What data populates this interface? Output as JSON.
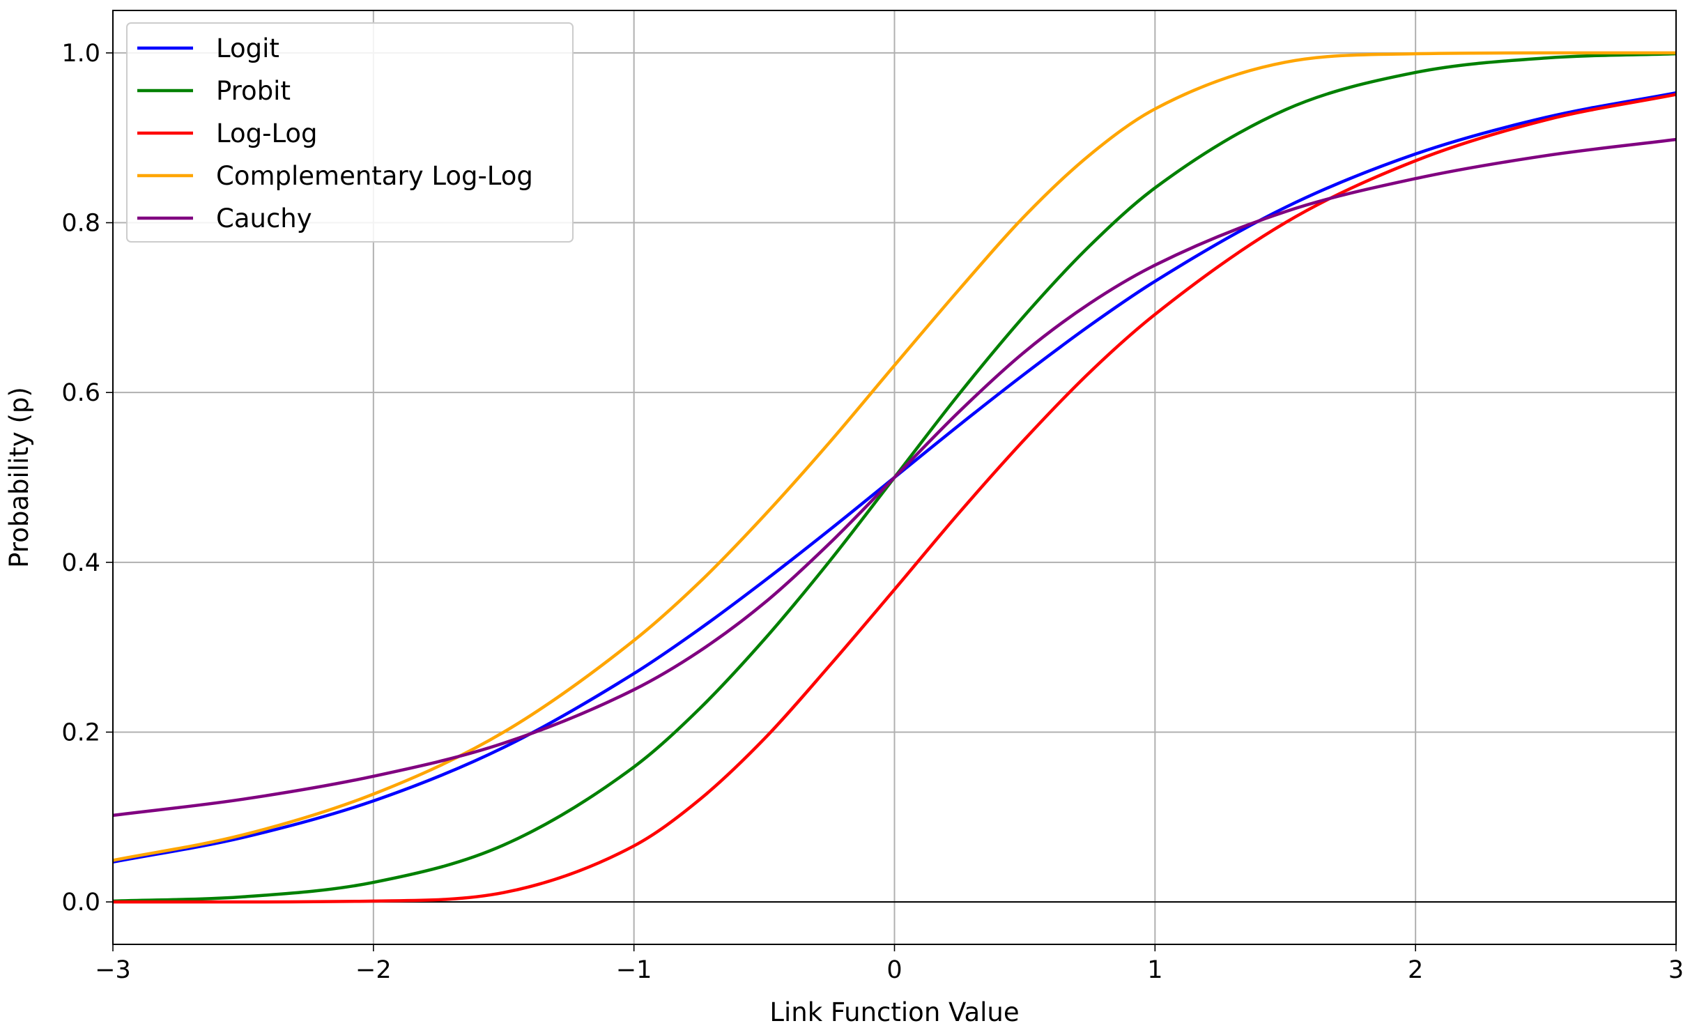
{
  "chart_data": {
    "type": "line",
    "title": "",
    "xlabel": "Link Function Value",
    "ylabel": "Probability (p)",
    "xlim": [
      -3,
      3
    ],
    "ylim": [
      -0.05,
      1.05
    ],
    "xticks": [
      -3,
      -2,
      -1,
      0,
      1,
      2,
      3
    ],
    "xtick_labels": [
      "−3",
      "−2",
      "−1",
      "0",
      "1",
      "2",
      "3"
    ],
    "yticks": [
      0.0,
      0.2,
      0.4,
      0.6,
      0.8,
      1.0
    ],
    "ytick_labels": [
      "0.0",
      "0.2",
      "0.4",
      "0.6",
      "0.8",
      "1.0"
    ],
    "grid": true,
    "reference_line_y": 0,
    "legend_position": "top-left",
    "x": [
      -3,
      -2.5,
      -2,
      -1.5,
      -1,
      -0.75,
      -0.5,
      -0.25,
      0,
      0.25,
      0.5,
      0.75,
      1,
      1.5,
      2,
      2.5,
      3
    ],
    "series": [
      {
        "name": "Logit",
        "color": "#0000ff",
        "values": [
          0.047,
          0.076,
          0.119,
          0.182,
          0.269,
          0.321,
          0.378,
          0.438,
          0.5,
          0.562,
          0.622,
          0.679,
          0.731,
          0.818,
          0.881,
          0.924,
          0.953
        ]
      },
      {
        "name": "Probit",
        "color": "#008000",
        "values": [
          0.001,
          0.006,
          0.023,
          0.067,
          0.159,
          0.227,
          0.309,
          0.401,
          0.5,
          0.599,
          0.691,
          0.773,
          0.841,
          0.933,
          0.977,
          0.994,
          0.999
        ]
      },
      {
        "name": "Log-Log",
        "color": "#ff0000",
        "values": [
          0.0,
          0.0,
          0.001,
          0.011,
          0.066,
          0.12,
          0.192,
          0.278,
          0.368,
          0.459,
          0.545,
          0.624,
          0.692,
          0.8,
          0.873,
          0.921,
          0.951
        ]
      },
      {
        "name": "Complementary Log-Log",
        "color": "#ffa500",
        "values": [
          0.049,
          0.079,
          0.127,
          0.2,
          0.308,
          0.376,
          0.455,
          0.541,
          0.632,
          0.722,
          0.808,
          0.88,
          0.934,
          0.989,
          0.999,
          1.0,
          1.0
        ]
      },
      {
        "name": "Cauchy",
        "color": "#800080",
        "values": [
          0.102,
          0.121,
          0.148,
          0.187,
          0.25,
          0.295,
          0.352,
          0.422,
          0.5,
          0.578,
          0.648,
          0.705,
          0.75,
          0.813,
          0.852,
          0.879,
          0.898
        ]
      }
    ]
  }
}
